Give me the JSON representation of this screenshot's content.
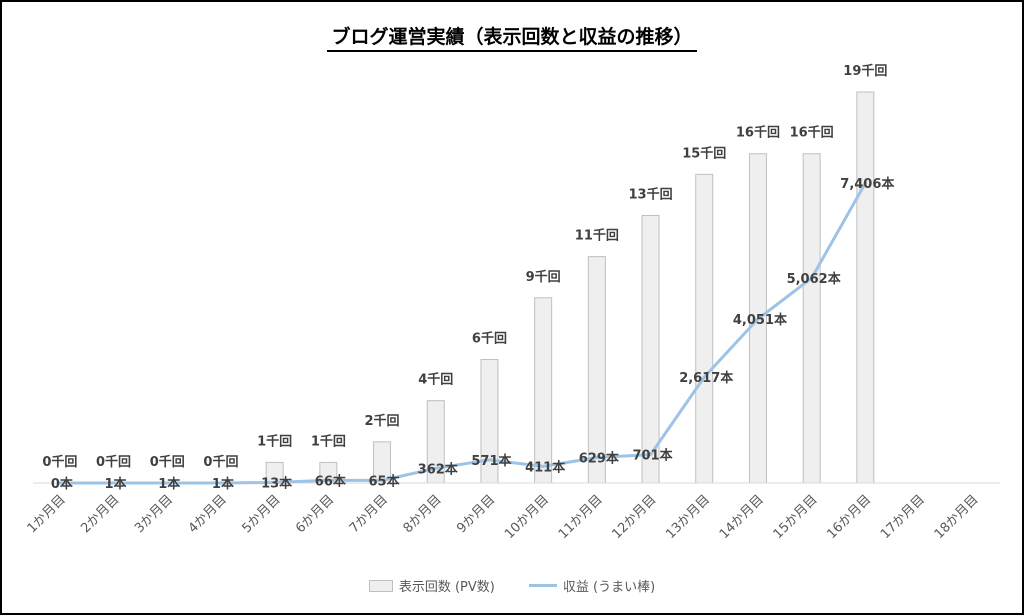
{
  "chart_data": {
    "type": "bar",
    "title": "ブログ運営実績（表示回数と収益の推移）",
    "categories": [
      "1か月目",
      "2か月目",
      "3か月目",
      "4か月目",
      "5か月目",
      "6か月目",
      "7か月目",
      "8か月目",
      "9か月目",
      "10か月目",
      "11か月目",
      "12か月目",
      "13か月目",
      "14か月目",
      "15か月目",
      "16か月目",
      "17か月目",
      "18か月目"
    ],
    "series": [
      {
        "name": "表示回数 (PV数)",
        "type": "bar",
        "unit": "千回",
        "values": [
          0,
          0,
          0,
          0,
          1,
          1,
          2,
          4,
          6,
          9,
          11,
          13,
          15,
          16,
          16,
          19,
          null,
          null
        ],
        "data_labels": [
          "0千回",
          "0千回",
          "0千回",
          "0千回",
          "1千回",
          "1千回",
          "2千回",
          "4千回",
          "6千回",
          "9千回",
          "11千回",
          "13千回",
          "15千回",
          "16千回",
          "16千回",
          "19千回",
          "",
          ""
        ],
        "color": "#efefef",
        "border_color": "#bfbfbf"
      },
      {
        "name": "収益 (うまい棒)",
        "type": "line",
        "unit": "本",
        "values": [
          0,
          1,
          1,
          1,
          13,
          66,
          65,
          362,
          571,
          411,
          629,
          701,
          2617,
          4051,
          5062,
          7406,
          null,
          null
        ],
        "data_labels": [
          "0本",
          "1本",
          "1本",
          "1本",
          "13本",
          "66本",
          "65本",
          "362本",
          "571本",
          "411本",
          "629本",
          "701本",
          "2,617本",
          "4,051本",
          "5,062本",
          "7,406本",
          "",
          ""
        ],
        "color": "#9dc3e6"
      }
    ],
    "legend": "bottom",
    "grid": false
  }
}
